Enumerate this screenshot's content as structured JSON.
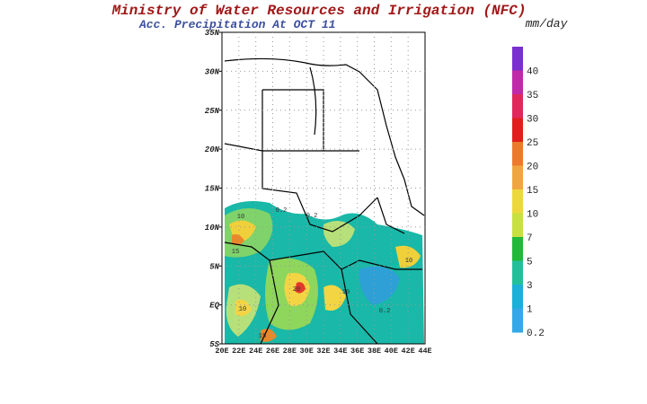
{
  "header": {
    "title": "Ministry of Water Resources and Irrigation (NFC)",
    "subtitle": "Acc. Precipitation   At OCT 11"
  },
  "map": {
    "lat_labels": [
      "35N",
      "30N",
      "25N",
      "20N",
      "15N",
      "10N",
      "5N",
      "EQ",
      "5S"
    ],
    "lon_labels": [
      "20E",
      "22E",
      "24E",
      "26E",
      "28E",
      "30E",
      "32E",
      "34E",
      "36E",
      "38E",
      "40E",
      "42E",
      "44E"
    ],
    "contour_labels": [
      "10",
      "0.2",
      "15",
      "10",
      "0.2",
      "20",
      "10",
      "0.2",
      "15",
      "10"
    ]
  },
  "colorbar": {
    "unit": "mm/day",
    "levels": [
      {
        "label": "40",
        "color": "#7a2fd0"
      },
      {
        "label": "35",
        "color": "#c02aa8"
      },
      {
        "label": "30",
        "color": "#e0285c"
      },
      {
        "label": "25",
        "color": "#e01e1e"
      },
      {
        "label": "20",
        "color": "#ec7a2c"
      },
      {
        "label": "15",
        "color": "#f0a640"
      },
      {
        "label": "10",
        "color": "#ecd83c"
      },
      {
        "label": "7",
        "color": "#c8e040"
      },
      {
        "label": "5",
        "color": "#22b83a"
      },
      {
        "label": "3",
        "color": "#22c09a"
      },
      {
        "label": "1",
        "color": "#1ab0d8"
      },
      {
        "label": "0.2",
        "color": "#34a8e8"
      }
    ]
  }
}
